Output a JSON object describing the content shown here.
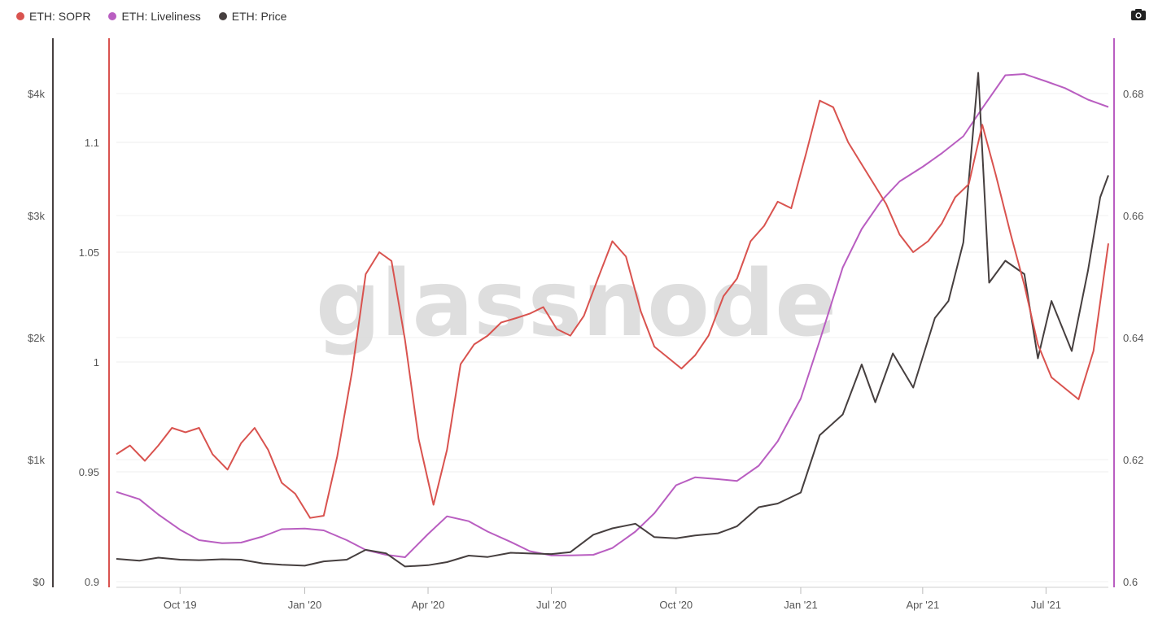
{
  "legend": [
    {
      "label": "ETH: SOPR",
      "color": "#d9534f"
    },
    {
      "label": "ETH: Liveliness",
      "color": "#b95ec1"
    },
    {
      "label": "ETH: Price",
      "color": "#463f3f"
    }
  ],
  "toolbar": {
    "icon": "camera-icon"
  },
  "watermark": "glassnode",
  "chart_data": {
    "type": "line",
    "x_tick_labels": [
      "Oct '19",
      "Jan '20",
      "Apr '20",
      "Jul '20",
      "Oct '20",
      "Jan '21",
      "Apr '21",
      "Jul '21"
    ],
    "x_range": [
      "2019-08-15",
      "2021-08-16"
    ],
    "axes": {
      "price": {
        "side": "left-outer",
        "ticks": [
          "$0",
          "$1k",
          "$2k",
          "$3k",
          "$4k"
        ],
        "range": [
          0,
          4000
        ]
      },
      "sopr": {
        "side": "left-inner",
        "ticks": [
          "0.9",
          "0.95",
          "1",
          "1.05",
          "1.1"
        ],
        "range": [
          0.9,
          1.1
        ]
      },
      "liveliness": {
        "side": "right",
        "ticks": [
          "0.6",
          "0.62",
          "0.64",
          "0.66",
          "0.68"
        ],
        "range": [
          0.6,
          0.68
        ]
      }
    },
    "grid": true,
    "legend_position": "top-left",
    "series": [
      {
        "name": "ETH: SOPR",
        "axis": "sopr",
        "color": "#d9534f",
        "points": [
          [
            "2019-08-15",
            0.958
          ],
          [
            "2019-08-25",
            0.962
          ],
          [
            "2019-09-05",
            0.955
          ],
          [
            "2019-09-15",
            0.962
          ],
          [
            "2019-09-25",
            0.97
          ],
          [
            "2019-10-05",
            0.968
          ],
          [
            "2019-10-15",
            0.97
          ],
          [
            "2019-10-25",
            0.958
          ],
          [
            "2019-11-05",
            0.951
          ],
          [
            "2019-11-15",
            0.963
          ],
          [
            "2019-11-25",
            0.97
          ],
          [
            "2019-12-05",
            0.96
          ],
          [
            "2019-12-15",
            0.945
          ],
          [
            "2019-12-25",
            0.94
          ],
          [
            "2020-01-05",
            0.929
          ],
          [
            "2020-01-15",
            0.93
          ],
          [
            "2020-01-25",
            0.957
          ],
          [
            "2020-02-05",
            0.996
          ],
          [
            "2020-02-15",
            1.04
          ],
          [
            "2020-02-25",
            1.05
          ],
          [
            "2020-03-05",
            1.046
          ],
          [
            "2020-03-15",
            1.01
          ],
          [
            "2020-03-25",
            0.965
          ],
          [
            "2020-04-05",
            0.935
          ],
          [
            "2020-04-15",
            0.96
          ],
          [
            "2020-04-25",
            0.999
          ],
          [
            "2020-05-05",
            1.008
          ],
          [
            "2020-05-15",
            1.012
          ],
          [
            "2020-05-25",
            1.018
          ],
          [
            "2020-06-05",
            1.02
          ],
          [
            "2020-06-15",
            1.022
          ],
          [
            "2020-06-25",
            1.025
          ],
          [
            "2020-07-05",
            1.015
          ],
          [
            "2020-07-15",
            1.012
          ],
          [
            "2020-07-25",
            1.021
          ],
          [
            "2020-08-05",
            1.039
          ],
          [
            "2020-08-15",
            1.055
          ],
          [
            "2020-08-25",
            1.048
          ],
          [
            "2020-09-05",
            1.023
          ],
          [
            "2020-09-15",
            1.007
          ],
          [
            "2020-09-25",
            1.002
          ],
          [
            "2020-10-05",
            0.997
          ],
          [
            "2020-10-15",
            1.003
          ],
          [
            "2020-10-25",
            1.012
          ],
          [
            "2020-11-05",
            1.03
          ],
          [
            "2020-11-15",
            1.038
          ],
          [
            "2020-11-25",
            1.055
          ],
          [
            "2020-12-05",
            1.062
          ],
          [
            "2020-12-15",
            1.073
          ],
          [
            "2020-12-25",
            1.07
          ],
          [
            "2021-01-05",
            1.095
          ],
          [
            "2021-01-15",
            1.119
          ],
          [
            "2021-01-25",
            1.116
          ],
          [
            "2021-02-05",
            1.1
          ],
          [
            "2021-02-15",
            1.09
          ],
          [
            "2021-02-25",
            1.08
          ],
          [
            "2021-03-05",
            1.072
          ],
          [
            "2021-03-15",
            1.058
          ],
          [
            "2021-03-25",
            1.05
          ],
          [
            "2021-04-05",
            1.055
          ],
          [
            "2021-04-15",
            1.063
          ],
          [
            "2021-04-25",
            1.075
          ],
          [
            "2021-05-05",
            1.081
          ],
          [
            "2021-05-15",
            1.108
          ],
          [
            "2021-05-25",
            1.085
          ],
          [
            "2021-06-05",
            1.058
          ],
          [
            "2021-06-15",
            1.035
          ],
          [
            "2021-06-25",
            1.008
          ],
          [
            "2021-07-05",
            0.993
          ],
          [
            "2021-07-15",
            0.988
          ],
          [
            "2021-07-25",
            0.983
          ],
          [
            "2021-08-05",
            1.005
          ],
          [
            "2021-08-16",
            1.054
          ]
        ]
      },
      {
        "name": "ETH: Liveliness",
        "axis": "liveliness",
        "color": "#b95ec1",
        "points": [
          [
            "2019-08-15",
            0.6147
          ],
          [
            "2019-09-01",
            0.6135
          ],
          [
            "2019-09-15",
            0.611
          ],
          [
            "2019-10-01",
            0.6085
          ],
          [
            "2019-10-15",
            0.6068
          ],
          [
            "2019-11-01",
            0.6063
          ],
          [
            "2019-11-15",
            0.6064
          ],
          [
            "2019-12-01",
            0.6074
          ],
          [
            "2019-12-15",
            0.6086
          ],
          [
            "2020-01-01",
            0.6087
          ],
          [
            "2020-01-15",
            0.6084
          ],
          [
            "2020-02-01",
            0.6068
          ],
          [
            "2020-02-15",
            0.6052
          ],
          [
            "2020-03-01",
            0.6044
          ],
          [
            "2020-03-15",
            0.604
          ],
          [
            "2020-04-01",
            0.6078
          ],
          [
            "2020-04-15",
            0.6107
          ],
          [
            "2020-05-01",
            0.6099
          ],
          [
            "2020-05-15",
            0.6082
          ],
          [
            "2020-06-01",
            0.6065
          ],
          [
            "2020-06-15",
            0.605
          ],
          [
            "2020-07-01",
            0.6043
          ],
          [
            "2020-07-15",
            0.6043
          ],
          [
            "2020-08-01",
            0.6044
          ],
          [
            "2020-08-15",
            0.6055
          ],
          [
            "2020-09-01",
            0.6082
          ],
          [
            "2020-09-15",
            0.6112
          ],
          [
            "2020-10-01",
            0.6158
          ],
          [
            "2020-10-15",
            0.6171
          ],
          [
            "2020-11-01",
            0.6168
          ],
          [
            "2020-11-15",
            0.6165
          ],
          [
            "2020-12-01",
            0.619
          ],
          [
            "2020-12-15",
            0.623
          ],
          [
            "2021-01-01",
            0.63
          ],
          [
            "2021-01-15",
            0.6395
          ],
          [
            "2021-02-01",
            0.6515
          ],
          [
            "2021-02-15",
            0.6578
          ],
          [
            "2021-03-01",
            0.6623
          ],
          [
            "2021-03-15",
            0.6656
          ],
          [
            "2021-04-01",
            0.668
          ],
          [
            "2021-04-15",
            0.6702
          ],
          [
            "2021-05-01",
            0.673
          ],
          [
            "2021-05-15",
            0.6776
          ],
          [
            "2021-06-01",
            0.683
          ],
          [
            "2021-06-15",
            0.6832
          ],
          [
            "2021-07-01",
            0.682
          ],
          [
            "2021-07-15",
            0.6809
          ],
          [
            "2021-08-01",
            0.679
          ],
          [
            "2021-08-16",
            0.6778
          ]
        ]
      },
      {
        "name": "ETH: Price",
        "axis": "price",
        "color": "#463f3f",
        "points": [
          [
            "2019-08-15",
            187
          ],
          [
            "2019-09-01",
            172
          ],
          [
            "2019-09-15",
            197
          ],
          [
            "2019-10-01",
            180
          ],
          [
            "2019-10-15",
            176
          ],
          [
            "2019-11-01",
            183
          ],
          [
            "2019-11-15",
            180
          ],
          [
            "2019-12-01",
            149
          ],
          [
            "2019-12-15",
            138
          ],
          [
            "2020-01-01",
            131
          ],
          [
            "2020-01-15",
            166
          ],
          [
            "2020-02-01",
            180
          ],
          [
            "2020-02-15",
            261
          ],
          [
            "2020-03-01",
            232
          ],
          [
            "2020-03-15",
            124
          ],
          [
            "2020-04-01",
            135
          ],
          [
            "2020-04-15",
            160
          ],
          [
            "2020-05-01",
            213
          ],
          [
            "2020-05-15",
            202
          ],
          [
            "2020-06-01",
            237
          ],
          [
            "2020-06-15",
            231
          ],
          [
            "2020-07-01",
            226
          ],
          [
            "2020-07-15",
            242
          ],
          [
            "2020-08-01",
            385
          ],
          [
            "2020-08-15",
            437
          ],
          [
            "2020-09-01",
            475
          ],
          [
            "2020-09-15",
            365
          ],
          [
            "2020-10-01",
            355
          ],
          [
            "2020-10-15",
            378
          ],
          [
            "2020-11-01",
            396
          ],
          [
            "2020-11-15",
            454
          ],
          [
            "2020-12-01",
            610
          ],
          [
            "2020-12-15",
            640
          ],
          [
            "2021-01-01",
            730
          ],
          [
            "2021-01-15",
            1200
          ],
          [
            "2021-02-01",
            1370
          ],
          [
            "2021-02-15",
            1780
          ],
          [
            "2021-02-25",
            1470
          ],
          [
            "2021-03-10",
            1870
          ],
          [
            "2021-03-25",
            1590
          ],
          [
            "2021-04-10",
            2160
          ],
          [
            "2021-04-20",
            2300
          ],
          [
            "2021-05-01",
            2780
          ],
          [
            "2021-05-12",
            4170
          ],
          [
            "2021-05-20",
            2450
          ],
          [
            "2021-06-01",
            2630
          ],
          [
            "2021-06-15",
            2520
          ],
          [
            "2021-06-25",
            1830
          ],
          [
            "2021-07-05",
            2300
          ],
          [
            "2021-07-20",
            1890
          ],
          [
            "2021-08-01",
            2550
          ],
          [
            "2021-08-10",
            3150
          ],
          [
            "2021-08-16",
            3330
          ]
        ]
      }
    ]
  }
}
